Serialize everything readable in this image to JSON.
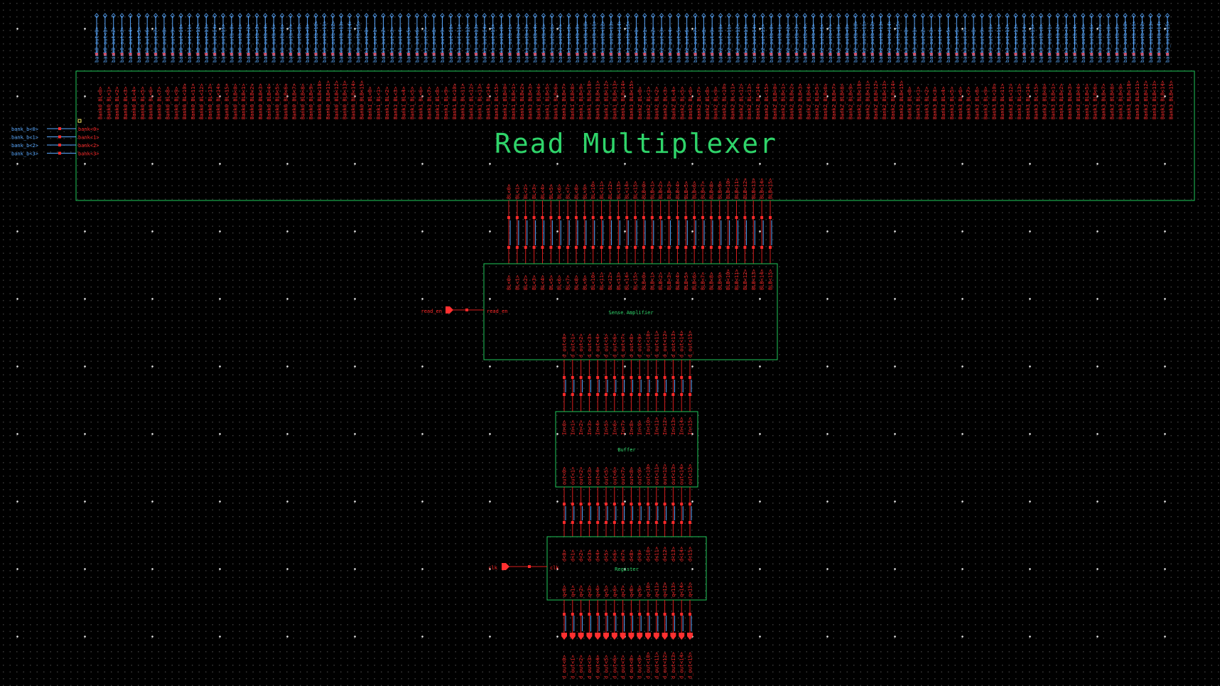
{
  "colors": {
    "background": "#000000",
    "block_outline": "#1fc75a",
    "pin_red": "#ff2a2a",
    "wire_red": "#d81e1e",
    "net_blue": "#5aa9ff",
    "port_red": "#ff3030",
    "title_green": "#2fd46a"
  },
  "icons": {
    "port": "pentagon-port-icon",
    "pin": "square-pin-icon"
  },
  "read_mux": {
    "title": "Read Multiplexer",
    "bank_select_nets": [
      "bank_b<0>",
      "bank_b<1>",
      "bank_b<2>",
      "bank_b<3>"
    ],
    "bank_select_pins": [
      "bank<0>",
      "bank<1>",
      "bank<2>",
      "bank<3>"
    ],
    "output_nets": [
      "bank0_out<0>",
      "bank0_out<1>",
      "bank0_out<2>",
      "bank0_out<3>",
      "bank0_out<4>",
      "bank0_out<5>",
      "bank0_out<6>",
      "bank0_out<7>",
      "bank0_out<8>",
      "bank0_out<9>",
      "bank0_out<10>",
      "bank0_out<11>",
      "bank0_out<12>",
      "bank0_out<13>",
      "bank0_out<14>",
      "bank0_out<15>",
      "bank0_outb<0>",
      "bank0_outb<1>",
      "bank0_outb<2>",
      "bank0_outb<3>",
      "bank0_outb<4>",
      "bank0_outb<5>",
      "bank0_outb<6>",
      "bank0_outb<7>",
      "bank0_outb<8>",
      "bank0_outb<9>",
      "bank0_outb<10>",
      "bank0_outb<11>",
      "bank0_outb<12>",
      "bank0_outb<13>",
      "bank0_outb<14>",
      "bank0_outb<15>",
      "bank1_out<0>",
      "bank1_out<1>",
      "bank1_out<2>",
      "bank1_out<3>",
      "bank1_out<4>",
      "bank1_out<5>",
      "bank1_out<6>",
      "bank1_out<7>",
      "bank1_out<8>",
      "bank1_out<9>",
      "bank1_out<10>",
      "bank1_out<11>",
      "bank1_out<12>",
      "bank1_out<13>",
      "bank1_out<14>",
      "bank1_out<15>",
      "bank1_outb<0>",
      "bank1_outb<1>",
      "bank1_outb<2>",
      "bank1_outb<3>",
      "bank1_outb<4>",
      "bank1_outb<5>",
      "bank1_outb<6>",
      "bank1_outb<7>",
      "bank1_outb<8>",
      "bank1_outb<9>",
      "bank1_outb<10>",
      "bank1_outb<11>",
      "bank1_outb<12>",
      "bank1_outb<13>",
      "bank1_outb<14>",
      "bank1_outb<15>",
      "bank2_out<0>",
      "bank2_out<1>",
      "bank2_out<2>",
      "bank2_out<3>",
      "bank2_out<4>",
      "bank2_out<5>",
      "bank2_out<6>",
      "bank2_out<7>",
      "bank2_out<8>",
      "bank2_out<9>",
      "bank2_out<10>",
      "bank2_out<11>",
      "bank2_out<12>",
      "bank2_out<13>",
      "bank2_out<14>",
      "bank2_out<15>",
      "bank2_outb<0>",
      "bank2_outb<1>",
      "bank2_outb<2>",
      "bank2_outb<3>",
      "bank2_outb<4>",
      "bank2_outb<5>",
      "bank2_outb<6>",
      "bank2_outb<7>",
      "bank2_outb<8>",
      "bank2_outb<9>",
      "bank2_outb<10>",
      "bank2_outb<11>",
      "bank2_outb<12>",
      "bank2_outb<13>",
      "bank2_outb<14>",
      "bank2_outb<15>",
      "bank3_out<0>",
      "bank3_out<1>",
      "bank3_out<2>",
      "bank3_out<3>",
      "bank3_out<4>",
      "bank3_out<5>",
      "bank3_out<6>",
      "bank3_out<7>",
      "bank3_out<8>",
      "bank3_out<9>",
      "bank3_out<10>",
      "bank3_out<11>",
      "bank3_out<12>",
      "bank3_out<13>",
      "bank3_out<14>",
      "bank3_out<15>",
      "bank3_outb<0>",
      "bank3_outb<1>",
      "bank3_outb<2>",
      "bank3_outb<3>",
      "bank3_outb<4>",
      "bank3_outb<5>",
      "bank3_outb<6>",
      "bank3_outb<7>",
      "bank3_outb<8>",
      "bank3_outb<9>",
      "bank3_outb<10>",
      "bank3_outb<11>",
      "bank3_outb<12>",
      "bank3_outb<13>",
      "bank3_outb<14>",
      "bank3_outb<15>"
    ],
    "input_pins": [
      "Bank0_BL<0>",
      "Bank0_BL<1>",
      "Bank0_BL<2>",
      "Bank0_BL<3>",
      "Bank0_BL<4>",
      "Bank0_BL<5>",
      "Bank0_BL<6>",
      "Bank0_BL<7>",
      "Bank0_BL<8>",
      "Bank0_BL<9>",
      "Bank0_BL<10>",
      "Bank0_BL<11>",
      "Bank0_BL<12>",
      "Bank0_BL<13>",
      "Bank0_BL<14>",
      "Bank0_BL<15>",
      "Bank0_BLB<0>",
      "Bank0_BLB<1>",
      "Bank0_BLB<2>",
      "Bank0_BLB<3>",
      "Bank0_BLB<4>",
      "Bank0_BLB<5>",
      "Bank0_BLB<6>",
      "Bank0_BLB<7>",
      "Bank0_BLB<8>",
      "Bank0_BLB<9>",
      "Bank0_BLB<10>",
      "Bank0_BLB<11>",
      "Bank0_BLB<12>",
      "Bank0_BLB<13>",
      "Bank0_BLB<14>",
      "Bank0_BLB<15>",
      "Bank1_BL<0>",
      "Bank1_BL<1>",
      "Bank1_BL<2>",
      "Bank1_BL<3>",
      "Bank1_BL<4>",
      "Bank1_BL<5>",
      "Bank1_BL<6>",
      "Bank1_BL<7>",
      "Bank1_BL<8>",
      "Bank1_BL<9>",
      "Bank1_BL<10>",
      "Bank1_BL<11>",
      "Bank1_BL<12>",
      "Bank1_BL<13>",
      "Bank1_BL<14>",
      "Bank1_BL<15>",
      "Bank1_BLB<0>",
      "Bank1_BLB<1>",
      "Bank1_BLB<2>",
      "Bank1_BLB<3>",
      "Bank1_BLB<4>",
      "Bank1_BLB<5>",
      "Bank1_BLB<6>",
      "Bank1_BLB<7>",
      "Bank1_BLB<8>",
      "Bank1_BLB<9>",
      "Bank1_BLB<10>",
      "Bank1_BLB<11>",
      "Bank1_BLB<12>",
      "Bank1_BLB<13>",
      "Bank1_BLB<14>",
      "Bank1_BLB<15>",
      "Bank2_BL<0>",
      "Bank2_BL<1>",
      "Bank2_BL<2>",
      "Bank2_BL<3>",
      "Bank2_BL<4>",
      "Bank2_BL<5>",
      "Bank2_BL<6>",
      "Bank2_BL<7>",
      "Bank2_BL<8>",
      "Bank2_BL<9>",
      "Bank2_BL<10>",
      "Bank2_BL<11>",
      "Bank2_BL<12>",
      "Bank2_BL<13>",
      "Bank2_BL<14>",
      "Bank2_BL<15>",
      "Bank2_BLB<0>",
      "Bank2_BLB<1>",
      "Bank2_BLB<2>",
      "Bank2_BLB<3>",
      "Bank2_BLB<4>",
      "Bank2_BLB<5>",
      "Bank2_BLB<6>",
      "Bank2_BLB<7>",
      "Bank2_BLB<8>",
      "Bank2_BLB<9>",
      "Bank2_BLB<10>",
      "Bank2_BLB<11>",
      "Bank2_BLB<12>",
      "Bank2_BLB<13>",
      "Bank2_BLB<14>",
      "Bank2_BLB<15>",
      "Bank3_BL<0>",
      "Bank3_BL<1>",
      "Bank3_BL<2>",
      "Bank3_BL<3>",
      "Bank3_BL<4>",
      "Bank3_BL<5>",
      "Bank3_BL<6>",
      "Bank3_BL<7>",
      "Bank3_BL<8>",
      "Bank3_BL<9>",
      "Bank3_BL<10>",
      "Bank3_BL<11>",
      "Bank3_BL<12>",
      "Bank3_BL<13>",
      "Bank3_BL<14>",
      "Bank3_BL<15>",
      "Bank3_BLB<0>",
      "Bank3_BLB<1>",
      "Bank3_BLB<2>",
      "Bank3_BLB<3>",
      "Bank3_BLB<4>",
      "Bank3_BLB<5>",
      "Bank3_BLB<6>",
      "Bank3_BLB<7>",
      "Bank3_BLB<8>",
      "Bank3_BLB<9>",
      "Bank3_BLB<10>",
      "Bank3_BLB<11>",
      "Bank3_BLB<12>",
      "Bank3_BLB<13>",
      "Bank3_BLB<14>",
      "Bank3_BLB<15>"
    ],
    "output_pins": [
      "BL<0>",
      "BL<1>",
      "BL<2>",
      "BL<3>",
      "BL<4>",
      "BL<5>",
      "BL<6>",
      "BL<7>",
      "BL<8>",
      "BL<9>",
      "BL<10>",
      "BL<11>",
      "BL<12>",
      "BL<13>",
      "BL<14>",
      "BL<15>",
      "BLB<0>",
      "BLB<1>",
      "BLB<2>",
      "BLB<3>",
      "BLB<4>",
      "BLB<5>",
      "BLB<6>",
      "BLB<7>",
      "BLB<8>",
      "BLB<9>",
      "BLB<10>",
      "BLB<11>",
      "BLB<12>",
      "BLB<13>",
      "BLB<14>",
      "BLB<15>"
    ]
  },
  "sense_amp": {
    "title": "Sense Amplifier",
    "enable_net": "read_en",
    "enable_pin": "read_en",
    "input_pins": [
      "BL<0>",
      "BL<1>",
      "BL<2>",
      "BL<3>",
      "BL<4>",
      "BL<5>",
      "BL<6>",
      "BL<7>",
      "BL<8>",
      "BL<9>",
      "BL<10>",
      "BL<11>",
      "BL<12>",
      "BL<13>",
      "BL<14>",
      "BL<15>",
      "BLB<0>",
      "BLB<1>",
      "BLB<2>",
      "BLB<3>",
      "BLB<4>",
      "BLB<5>",
      "BLB<6>",
      "BLB<7>",
      "BLB<8>",
      "BLB<9>",
      "BLB<10>",
      "BLB<11>",
      "BLB<12>",
      "BLB<13>",
      "BLB<14>",
      "BLB<15>"
    ],
    "output_pins": [
      "d_out<0>",
      "d_out<1>",
      "d_out<2>",
      "d_out<3>",
      "d_out<4>",
      "d_out<5>",
      "d_out<6>",
      "d_out<7>",
      "d_out<8>",
      "d_out<9>",
      "d_out<10>",
      "d_out<11>",
      "d_out<12>",
      "d_out<13>",
      "d_out<14>",
      "d_out<15>"
    ]
  },
  "buffer": {
    "title": "Buffer",
    "input_pins": [
      "In<0>",
      "In<1>",
      "In<2>",
      "In<3>",
      "In<4>",
      "In<5>",
      "In<6>",
      "In<7>",
      "In<8>",
      "In<9>",
      "In<10>",
      "In<11>",
      "In<12>",
      "In<13>",
      "In<14>",
      "In<15>"
    ],
    "output_pins": [
      "out<0>",
      "out<1>",
      "out<2>",
      "out<3>",
      "out<4>",
      "out<5>",
      "out<6>",
      "out<7>",
      "out<8>",
      "out<9>",
      "out<10>",
      "out<11>",
      "out<12>",
      "out<13>",
      "out<14>",
      "out<15>"
    ]
  },
  "register": {
    "title": "Register",
    "clock_net": "clk",
    "clock_pin": "clk",
    "input_pins": [
      "d<0>",
      "d<1>",
      "d<2>",
      "d<3>",
      "d<4>",
      "d<5>",
      "d<6>",
      "d<7>",
      "d<8>",
      "d<9>",
      "d<10>",
      "d<11>",
      "d<12>",
      "d<13>",
      "d<14>",
      "d<15>"
    ],
    "output_pins": [
      "q<0>",
      "q<1>",
      "q<2>",
      "q<3>",
      "q<4>",
      "q<5>",
      "q<6>",
      "q<7>",
      "q<8>",
      "q<9>",
      "q<10>",
      "q<11>",
      "q<12>",
      "q<13>",
      "q<14>",
      "q<15>"
    ],
    "output_ports": [
      "d_out<0>",
      "d_out<1>",
      "d_out<2>",
      "d_out<3>",
      "d_out<4>",
      "d_out<5>",
      "d_out<6>",
      "d_out<7>",
      "d_out<8>",
      "d_out<9>",
      "d_out<10>",
      "d_out<11>",
      "d_out<12>",
      "d_out<13>",
      "d_out<14>",
      "d_out<15>"
    ]
  }
}
